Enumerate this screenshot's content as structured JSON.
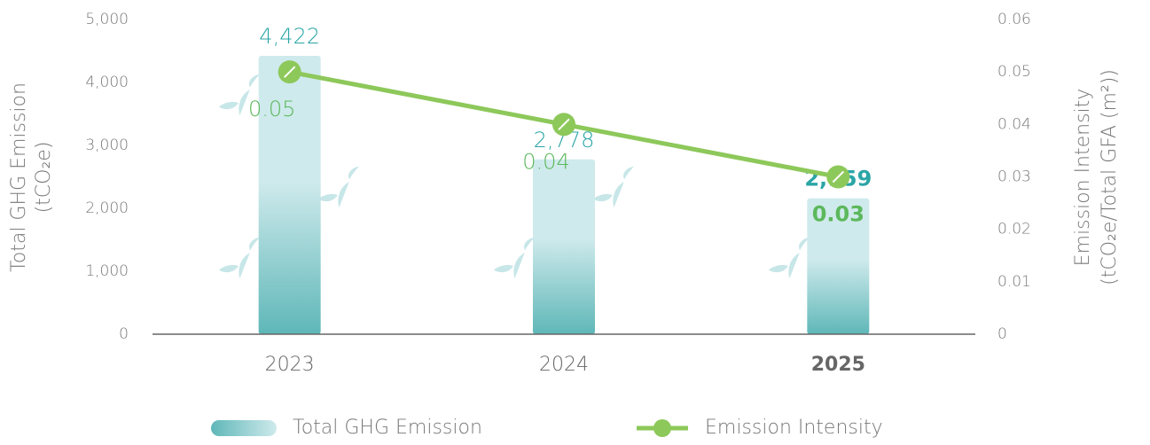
{
  "chart_data": {
    "type": "bar",
    "categories": [
      "2023",
      "2024",
      "2025"
    ],
    "series": [
      {
        "name": "Total GHG Emission",
        "type": "bar",
        "color": "#5fb7b8",
        "values": [
          4422,
          2778,
          2159
        ],
        "value_labels": [
          "4,422",
          "2,778",
          "2,159"
        ]
      },
      {
        "name": "Emission Intensity",
        "type": "line",
        "axis": "y2",
        "color": "#8dc85a",
        "values": [
          0.05,
          0.04,
          0.03
        ]
      }
    ],
    "ylabel": [
      "Total GHG Emission",
      "(tCO₂e)"
    ],
    "y2label": [
      "Emission Intensity",
      "(tCO₂e/Total GFA (m²))"
    ],
    "ylim": [
      0,
      5000
    ],
    "yticks": [
      0,
      {
        "value": 1000,
        "label": "1,000"
      },
      {
        "value": 2000,
        "label": "2,000"
      },
      {
        "value": 3000,
        "label": "3,000"
      },
      {
        "value": 4000,
        "label": "4,000"
      },
      {
        "value": 5000,
        "label": "5,000"
      }
    ],
    "y2lim": [
      0,
      0.06
    ],
    "y2ticks": [
      0,
      0.01,
      0.02,
      0.03,
      0.04,
      0.05,
      0.06
    ],
    "legend": "bottom"
  }
}
